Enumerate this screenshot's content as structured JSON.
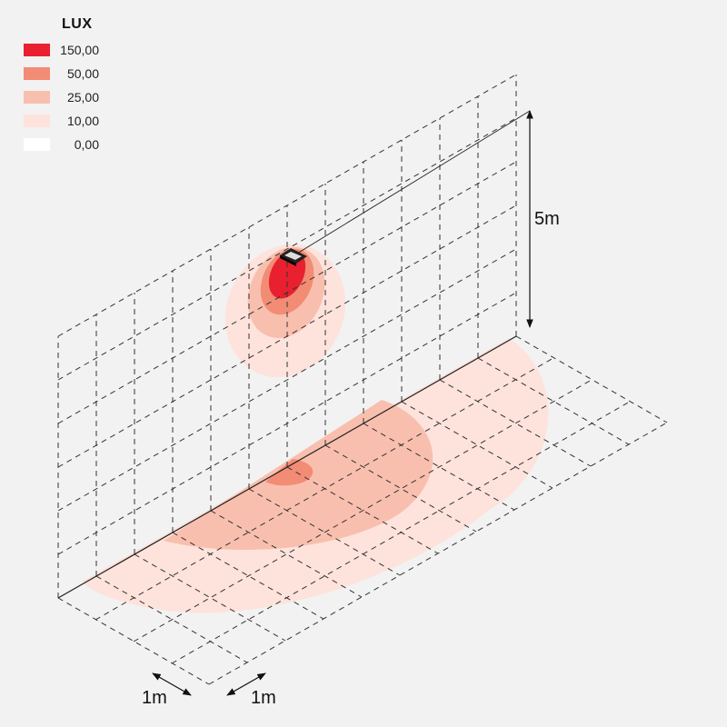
{
  "legend": {
    "title": "LUX",
    "items": [
      {
        "label": "150,00",
        "color": "#e8202f"
      },
      {
        "label": "50,00",
        "color": "#f28c75"
      },
      {
        "label": "25,00",
        "color": "#f9bfae"
      },
      {
        "label": "10,00",
        "color": "#fde3dc"
      },
      {
        "label": "0,00",
        "color": "#ffffff"
      }
    ]
  },
  "dimensions": {
    "height_label": "5m",
    "grid_x_label": "1m",
    "grid_y_label": "1m"
  }
}
